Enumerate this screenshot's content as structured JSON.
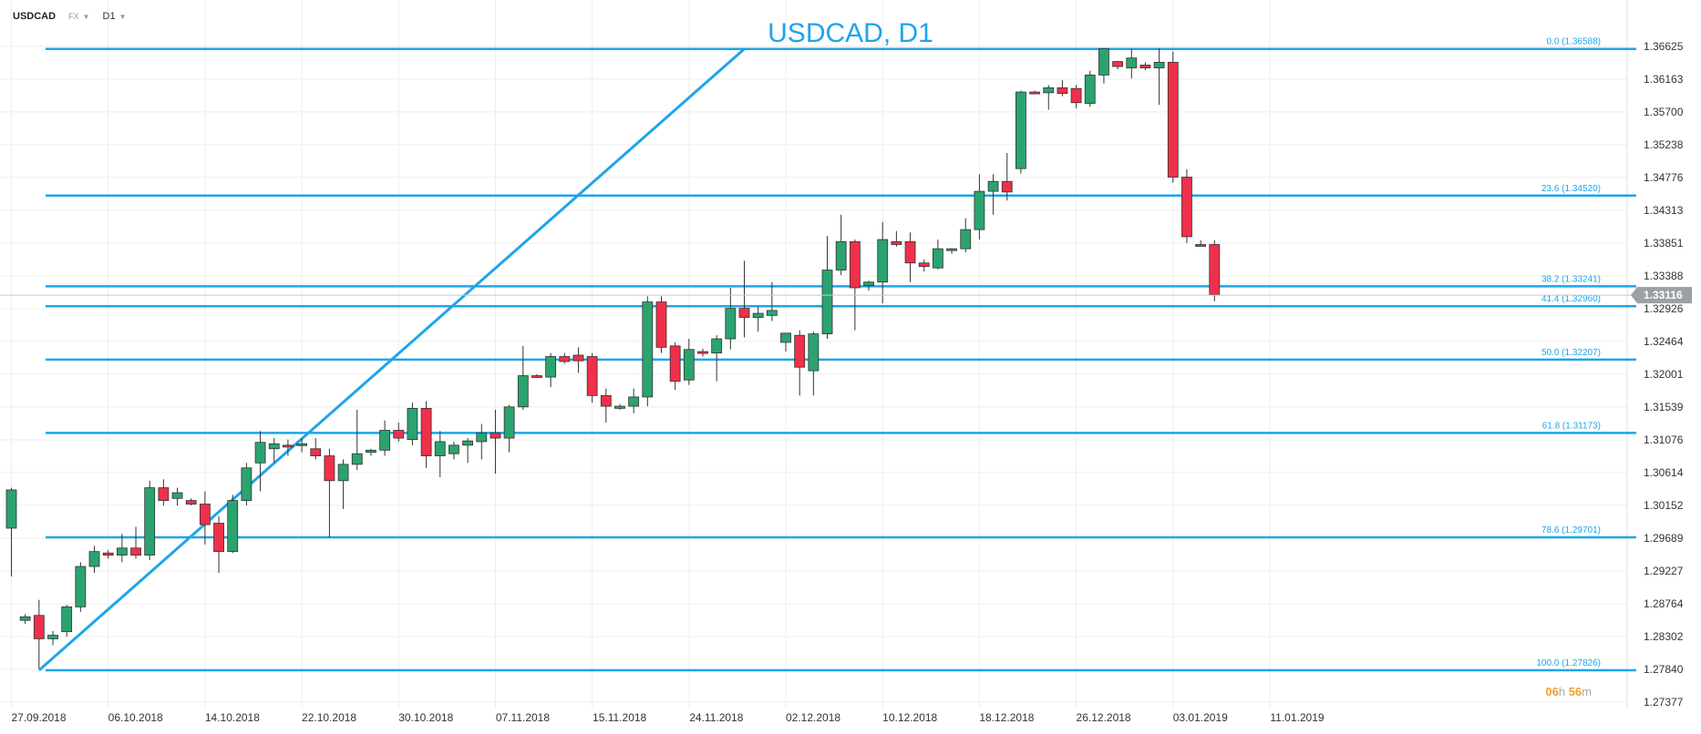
{
  "header": {
    "symbol": "USDCAD",
    "market": "FX",
    "timeframe": "D1"
  },
  "title": "USDCAD, D1",
  "countdown": {
    "hours": "06",
    "hours_unit": "h",
    "minutes": "56",
    "minutes_unit": "m"
  },
  "current_price": "1.33116",
  "colors": {
    "bull": "#2ba36f",
    "bear": "#f0304a",
    "line": "#1ea5ea",
    "grid": "#eeeeee",
    "price_tag": "#9aa0a6"
  },
  "chart_data": {
    "type": "candlestick",
    "title": "USDCAD, D1",
    "y_ticks": [
      "1.36625",
      "1.36163",
      "1.35700",
      "1.35238",
      "1.34776",
      "1.34313",
      "1.33851",
      "1.33388",
      "1.32926",
      "1.32464",
      "1.32001",
      "1.31539",
      "1.31076",
      "1.30614",
      "1.30152",
      "1.29689",
      "1.29227",
      "1.28764",
      "1.28302",
      "1.27840",
      "1.27377"
    ],
    "ylim": [
      1.273,
      1.367
    ],
    "x_labels": [
      "27.09.2018",
      "06.10.2018",
      "14.10.2018",
      "22.10.2018",
      "30.10.2018",
      "07.11.2018",
      "15.11.2018",
      "24.11.2018",
      "02.12.2018",
      "10.12.2018",
      "18.12.2018",
      "26.12.2018",
      "03.01.2019",
      "11.01.2019"
    ],
    "x_label_candle_index": [
      0,
      7,
      14,
      21,
      28,
      35,
      42,
      49,
      56,
      63,
      70,
      77,
      84,
      91
    ],
    "fibonacci": [
      {
        "label": "0.0 (1.36588)",
        "value": 1.36588
      },
      {
        "label": "23.6 (1.34520)",
        "value": 1.3452
      },
      {
        "label": "38.2 (1.33241)",
        "value": 1.33241
      },
      {
        "label": "41.4 (1.32960)",
        "value": 1.3296
      },
      {
        "label": "50.0 (1.32207)",
        "value": 1.32207
      },
      {
        "label": "61.8 (1.31173)",
        "value": 1.31173
      },
      {
        "label": "78.6 (1.29701)",
        "value": 1.29701
      },
      {
        "label": "100.0 (1.27826)",
        "value": 1.27826
      }
    ],
    "trendline": [
      {
        "candle": 2,
        "price": 1.27826
      },
      {
        "candle": 53,
        "price": 1.36588
      }
    ],
    "candles": [
      {
        "o": 1.2983,
        "h": 1.304,
        "l": 1.2915,
        "c": 1.3037
      },
      {
        "o": 1.2853,
        "h": 1.2862,
        "l": 1.2848,
        "c": 1.2858
      },
      {
        "o": 1.286,
        "h": 1.2882,
        "l": 1.2785,
        "c": 1.2827
      },
      {
        "o": 1.2827,
        "h": 1.2838,
        "l": 1.2818,
        "c": 1.2832
      },
      {
        "o": 1.2837,
        "h": 1.2875,
        "l": 1.283,
        "c": 1.2872
      },
      {
        "o": 1.2872,
        "h": 1.2935,
        "l": 1.2865,
        "c": 1.2929
      },
      {
        "o": 1.2929,
        "h": 1.2958,
        "l": 1.292,
        "c": 1.295
      },
      {
        "o": 1.2948,
        "h": 1.2952,
        "l": 1.294,
        "c": 1.2945
      },
      {
        "o": 1.2945,
        "h": 1.2975,
        "l": 1.2935,
        "c": 1.2955
      },
      {
        "o": 1.2955,
        "h": 1.2985,
        "l": 1.294,
        "c": 1.2945
      },
      {
        "o": 1.2945,
        "h": 1.305,
        "l": 1.2938,
        "c": 1.304
      },
      {
        "o": 1.304,
        "h": 1.3052,
        "l": 1.3015,
        "c": 1.3022
      },
      {
        "o": 1.3025,
        "h": 1.304,
        "l": 1.3015,
        "c": 1.3033
      },
      {
        "o": 1.3022,
        "h": 1.3025,
        "l": 1.3015,
        "c": 1.3017
      },
      {
        "o": 1.3017,
        "h": 1.3035,
        "l": 1.296,
        "c": 1.2988
      },
      {
        "o": 1.299,
        "h": 1.3,
        "l": 1.292,
        "c": 1.295
      },
      {
        "o": 1.295,
        "h": 1.303,
        "l": 1.2948,
        "c": 1.3022
      },
      {
        "o": 1.3022,
        "h": 1.3075,
        "l": 1.3015,
        "c": 1.3068
      },
      {
        "o": 1.3075,
        "h": 1.312,
        "l": 1.3035,
        "c": 1.3104
      },
      {
        "o": 1.3095,
        "h": 1.311,
        "l": 1.3075,
        "c": 1.3102
      },
      {
        "o": 1.31,
        "h": 1.3108,
        "l": 1.3085,
        "c": 1.3098
      },
      {
        "o": 1.31,
        "h": 1.311,
        "l": 1.309,
        "c": 1.3102
      },
      {
        "o": 1.3095,
        "h": 1.311,
        "l": 1.308,
        "c": 1.3085
      },
      {
        "o": 1.3085,
        "h": 1.3095,
        "l": 1.297,
        "c": 1.305
      },
      {
        "o": 1.305,
        "h": 1.308,
        "l": 1.301,
        "c": 1.3073
      },
      {
        "o": 1.3073,
        "h": 1.315,
        "l": 1.3065,
        "c": 1.3088
      },
      {
        "o": 1.309,
        "h": 1.3095,
        "l": 1.3085,
        "c": 1.3093
      },
      {
        "o": 1.3093,
        "h": 1.3135,
        "l": 1.3085,
        "c": 1.3121
      },
      {
        "o": 1.3121,
        "h": 1.3132,
        "l": 1.3105,
        "c": 1.311
      },
      {
        "o": 1.3108,
        "h": 1.316,
        "l": 1.31,
        "c": 1.3152
      },
      {
        "o": 1.3152,
        "h": 1.3162,
        "l": 1.3068,
        "c": 1.3085
      },
      {
        "o": 1.3085,
        "h": 1.312,
        "l": 1.3055,
        "c": 1.3105
      },
      {
        "o": 1.3088,
        "h": 1.3105,
        "l": 1.308,
        "c": 1.31
      },
      {
        "o": 1.31,
        "h": 1.311,
        "l": 1.3075,
        "c": 1.3106
      },
      {
        "o": 1.3105,
        "h": 1.313,
        "l": 1.308,
        "c": 1.3117
      },
      {
        "o": 1.3117,
        "h": 1.315,
        "l": 1.306,
        "c": 1.311
      },
      {
        "o": 1.311,
        "h": 1.3157,
        "l": 1.309,
        "c": 1.3154
      },
      {
        "o": 1.3154,
        "h": 1.324,
        "l": 1.315,
        "c": 1.3198
      },
      {
        "o": 1.3198,
        "h": 1.32,
        "l": 1.3195,
        "c": 1.3196
      },
      {
        "o": 1.3196,
        "h": 1.323,
        "l": 1.3182,
        "c": 1.3225
      },
      {
        "o": 1.3225,
        "h": 1.323,
        "l": 1.3215,
        "c": 1.3218
      },
      {
        "o": 1.3227,
        "h": 1.3238,
        "l": 1.3202,
        "c": 1.3219
      },
      {
        "o": 1.3225,
        "h": 1.323,
        "l": 1.316,
        "c": 1.317
      },
      {
        "o": 1.317,
        "h": 1.318,
        "l": 1.3132,
        "c": 1.3155
      },
      {
        "o": 1.3152,
        "h": 1.3158,
        "l": 1.315,
        "c": 1.3155
      },
      {
        "o": 1.3155,
        "h": 1.318,
        "l": 1.3145,
        "c": 1.3168
      },
      {
        "o": 1.3168,
        "h": 1.331,
        "l": 1.3155,
        "c": 1.3302
      },
      {
        "o": 1.3302,
        "h": 1.331,
        "l": 1.323,
        "c": 1.3238
      },
      {
        "o": 1.324,
        "h": 1.3245,
        "l": 1.3178,
        "c": 1.319
      },
      {
        "o": 1.3192,
        "h": 1.325,
        "l": 1.3185,
        "c": 1.3235
      },
      {
        "o": 1.3232,
        "h": 1.3236,
        "l": 1.3225,
        "c": 1.323
      },
      {
        "o": 1.323,
        "h": 1.3255,
        "l": 1.319,
        "c": 1.325
      },
      {
        "o": 1.325,
        "h": 1.3322,
        "l": 1.3235,
        "c": 1.3293
      },
      {
        "o": 1.3293,
        "h": 1.336,
        "l": 1.3252,
        "c": 1.328
      },
      {
        "o": 1.328,
        "h": 1.3295,
        "l": 1.326,
        "c": 1.3286
      },
      {
        "o": 1.3283,
        "h": 1.333,
        "l": 1.3275,
        "c": 1.329
      },
      {
        "o": 1.3245,
        "h": 1.3255,
        "l": 1.3232,
        "c": 1.3258
      },
      {
        "o": 1.3255,
        "h": 1.3262,
        "l": 1.317,
        "c": 1.321
      },
      {
        "o": 1.3205,
        "h": 1.326,
        "l": 1.317,
        "c": 1.3257
      },
      {
        "o": 1.3257,
        "h": 1.3395,
        "l": 1.325,
        "c": 1.3347
      },
      {
        "o": 1.3347,
        "h": 1.3425,
        "l": 1.334,
        "c": 1.3387
      },
      {
        "o": 1.3387,
        "h": 1.339,
        "l": 1.3262,
        "c": 1.3322
      },
      {
        "o": 1.3325,
        "h": 1.3332,
        "l": 1.3318,
        "c": 1.333
      },
      {
        "o": 1.333,
        "h": 1.3415,
        "l": 1.33,
        "c": 1.339
      },
      {
        "o": 1.3387,
        "h": 1.3402,
        "l": 1.338,
        "c": 1.3383
      },
      {
        "o": 1.3387,
        "h": 1.34,
        "l": 1.333,
        "c": 1.3357
      },
      {
        "o": 1.3357,
        "h": 1.3362,
        "l": 1.3345,
        "c": 1.3352
      },
      {
        "o": 1.335,
        "h": 1.339,
        "l": 1.3348,
        "c": 1.3377
      },
      {
        "o": 1.3375,
        "h": 1.3378,
        "l": 1.337,
        "c": 1.3377
      },
      {
        "o": 1.3377,
        "h": 1.342,
        "l": 1.3372,
        "c": 1.3404
      },
      {
        "o": 1.3404,
        "h": 1.3482,
        "l": 1.339,
        "c": 1.3458
      },
      {
        "o": 1.3458,
        "h": 1.3482,
        "l": 1.3425,
        "c": 1.3472
      },
      {
        "o": 1.3472,
        "h": 1.3512,
        "l": 1.3445,
        "c": 1.3457
      },
      {
        "o": 1.349,
        "h": 1.36,
        "l": 1.3483,
        "c": 1.3598
      },
      {
        "o": 1.3598,
        "h": 1.36,
        "l": 1.3595,
        "c": 1.3597
      },
      {
        "o": 1.3597,
        "h": 1.3608,
        "l": 1.3573,
        "c": 1.3604
      },
      {
        "o": 1.3604,
        "h": 1.3615,
        "l": 1.3592,
        "c": 1.3596
      },
      {
        "o": 1.3603,
        "h": 1.3608,
        "l": 1.3575,
        "c": 1.3583
      },
      {
        "o": 1.3582,
        "h": 1.3628,
        "l": 1.3577,
        "c": 1.3622
      },
      {
        "o": 1.3622,
        "h": 1.3659,
        "l": 1.361,
        "c": 1.3659
      },
      {
        "o": 1.3641,
        "h": 1.3642,
        "l": 1.363,
        "c": 1.3634
      },
      {
        "o": 1.3632,
        "h": 1.3659,
        "l": 1.3617,
        "c": 1.3646
      },
      {
        "o": 1.3636,
        "h": 1.364,
        "l": 1.3629,
        "c": 1.3632
      },
      {
        "o": 1.3632,
        "h": 1.366,
        "l": 1.358,
        "c": 1.364
      },
      {
        "o": 1.364,
        "h": 1.3655,
        "l": 1.347,
        "c": 1.3478
      },
      {
        "o": 1.3478,
        "h": 1.3489,
        "l": 1.3385,
        "c": 1.3394
      },
      {
        "o": 1.3383,
        "h": 1.3389,
        "l": 1.338,
        "c": 1.3382
      },
      {
        "o": 1.3383,
        "h": 1.3389,
        "l": 1.3303,
        "c": 1.3312
      }
    ]
  }
}
